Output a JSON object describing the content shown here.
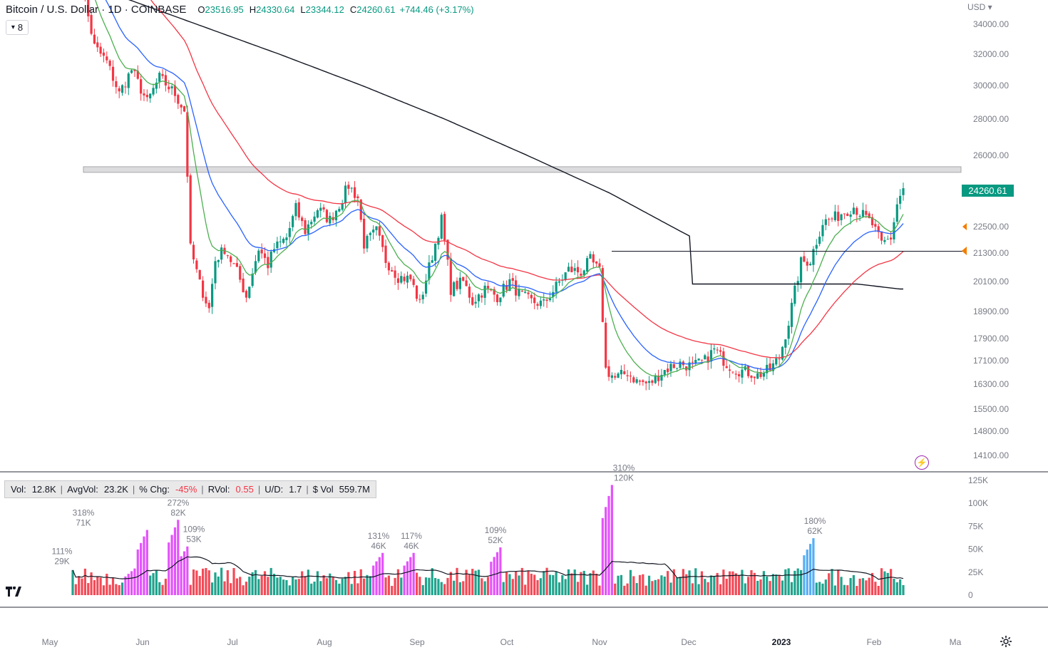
{
  "header": {
    "title": "Bitcoin / U.S. Dollar · 1D · COINBASE",
    "open_label": "O",
    "open": "23516.95",
    "high_label": "H",
    "high": "24330.64",
    "low_label": "L",
    "low": "23344.12",
    "close_label": "C",
    "close": "24260.61",
    "change": "+744.46 (+3.17%)"
  },
  "interval_selector": "8",
  "currency": "USD",
  "last_price": "24260.61",
  "volume_stats": {
    "vol_label": "Vol:",
    "vol": "12.8K",
    "avg_label": "AvgVol:",
    "avg": "23.2K",
    "chg_label": "% Chg:",
    "chg": "-45%",
    "rvol_label": "RVol:",
    "rvol": "0.55",
    "ud_label": "U/D:",
    "ud": "1.7",
    "dvol_label": "$ Vol",
    "dvol": "559.7M"
  },
  "colors": {
    "up": "#089981",
    "down": "#f23645",
    "ema_fast": "#4caf50",
    "ema_mid": "#2962ff",
    "ema_slow": "#f23645",
    "sma_long": "#131722",
    "spike": "#e040fb",
    "spike_up": "#42a5f5"
  },
  "chart_data": {
    "type": "candlestick",
    "price_axis_ticks": [
      "34000.00",
      "32000.00",
      "30000.00",
      "28000.00",
      "26000.00",
      "22500.00",
      "21300.00",
      "20100.00",
      "18900.00",
      "17900.00",
      "17100.00",
      "16300.00",
      "15500.00",
      "14800.00",
      "14100.00"
    ],
    "price_scale_anchors": [
      [
        34000,
        34
      ],
      [
        32000,
        76
      ],
      [
        30000,
        120
      ],
      [
        28000,
        167
      ],
      [
        26000,
        218
      ],
      [
        24000,
        271
      ],
      [
        22500,
        318
      ],
      [
        21300,
        355
      ],
      [
        20100,
        395
      ],
      [
        18900,
        437
      ],
      [
        17900,
        475
      ],
      [
        17100,
        506
      ],
      [
        16300,
        539
      ],
      [
        15500,
        574
      ],
      [
        14800,
        605
      ],
      [
        14100,
        639
      ]
    ],
    "volume_axis_ticks": [
      "125K",
      "100K",
      "75K",
      "50K",
      "25K",
      "0"
    ],
    "x_axis_labels": [
      "May",
      "Jun",
      "Jul",
      "Aug",
      "Sep",
      "Oct",
      "Nov",
      "Dec",
      "2023",
      "Feb",
      "Ma"
    ],
    "resistance_zone": [
      25100,
      25400
    ],
    "support_level": 21380,
    "volume_annotations": [
      {
        "pct": "111%",
        "vol": "29K"
      },
      {
        "pct": "318%",
        "vol": "71K"
      },
      {
        "pct": "272%",
        "vol": "82K"
      },
      {
        "pct": "109%",
        "vol": "53K"
      },
      {
        "pct": "131%",
        "vol": "46K"
      },
      {
        "pct": "117%",
        "vol": "46K"
      },
      {
        "pct": "109%",
        "vol": "52K"
      },
      {
        "pct": "310%",
        "vol": "120K"
      },
      {
        "pct": "180%",
        "vol": "62K"
      }
    ],
    "price_path": [
      [
        0,
        39500
      ],
      [
        7,
        32500
      ],
      [
        11,
        31500
      ],
      [
        15,
        29500
      ],
      [
        19,
        31000
      ],
      [
        24,
        29000
      ],
      [
        28,
        30500
      ],
      [
        33,
        29500
      ],
      [
        36,
        28500
      ],
      [
        38,
        21500
      ],
      [
        41,
        20000
      ],
      [
        44,
        19000
      ],
      [
        46,
        21000
      ],
      [
        49,
        21500
      ],
      [
        53,
        20500
      ],
      [
        56,
        19500
      ],
      [
        60,
        21500
      ],
      [
        63,
        20800
      ],
      [
        65,
        21500
      ],
      [
        69,
        22000
      ],
      [
        72,
        23300
      ],
      [
        75,
        22300
      ],
      [
        79,
        23300
      ],
      [
        83,
        22800
      ],
      [
        86,
        23500
      ],
      [
        89,
        24400
      ],
      [
        92,
        23800
      ],
      [
        94,
        21700
      ],
      [
        98,
        22300
      ],
      [
        101,
        21000
      ],
      [
        105,
        20300
      ],
      [
        109,
        20200
      ],
      [
        112,
        19200
      ],
      [
        116,
        21200
      ],
      [
        119,
        22800
      ],
      [
        122,
        19800
      ],
      [
        126,
        20100
      ],
      [
        129,
        19300
      ],
      [
        133,
        19800
      ],
      [
        137,
        19500
      ],
      [
        141,
        20100
      ],
      [
        144,
        19600
      ],
      [
        148,
        19300
      ],
      [
        152,
        19200
      ],
      [
        156,
        19900
      ],
      [
        160,
        20600
      ],
      [
        164,
        20500
      ],
      [
        167,
        21000
      ],
      [
        170,
        20500
      ],
      [
        172,
        16800
      ],
      [
        175,
        16500
      ],
      [
        179,
        16700
      ],
      [
        182,
        16400
      ],
      [
        186,
        16300
      ],
      [
        190,
        16700
      ],
      [
        193,
        16900
      ],
      [
        196,
        17000
      ],
      [
        200,
        16900
      ],
      [
        204,
        17100
      ],
      [
        207,
        17500
      ],
      [
        211,
        17000
      ],
      [
        214,
        16800
      ],
      [
        218,
        16700
      ],
      [
        221,
        16600
      ],
      [
        225,
        16800
      ],
      [
        228,
        17200
      ],
      [
        231,
        18500
      ],
      [
        235,
        20900
      ],
      [
        238,
        21000
      ],
      [
        242,
        22700
      ],
      [
        246,
        22900
      ],
      [
        249,
        23200
      ],
      [
        252,
        23400
      ],
      [
        255,
        23000
      ],
      [
        258,
        22600
      ],
      [
        261,
        21700
      ],
      [
        264,
        22000
      ],
      [
        266,
        23500
      ],
      [
        268,
        24260.61
      ]
    ]
  }
}
